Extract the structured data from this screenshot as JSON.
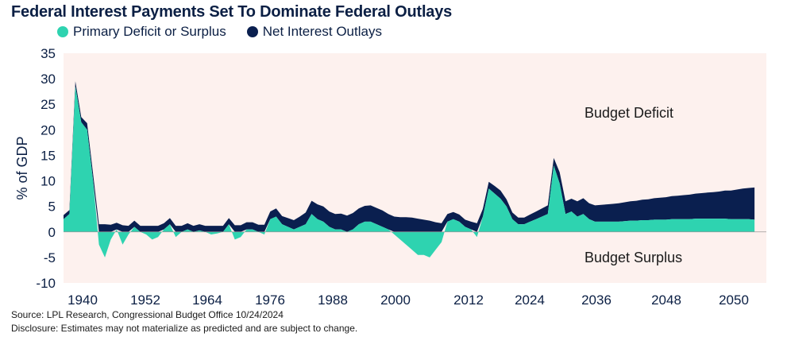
{
  "title": "Federal Interest Payments Set To Dominate Federal Outlays",
  "legend": [
    {
      "label": "Primary Deficit or Surplus",
      "color": "#2ed3b0"
    },
    {
      "label": "Net Interest Outlays",
      "color": "#0a1f4f"
    }
  ],
  "footnotes": {
    "source": "Source: LPL Research, Congressional Budget Office 10/24/2024",
    "disclosure": "Disclosure: Estimates may not materialize as predicted and are subject to change."
  },
  "colors": {
    "plot_bg": "#fdf1ee",
    "primary": "#2ed3b0",
    "interest": "#0a1f4f",
    "text": "#0b1f44"
  },
  "chart_data": {
    "type": "area",
    "stacked": true,
    "ylabel": "% of GDP",
    "xlabel": "",
    "ylim": [
      -10,
      35
    ],
    "yticks": [
      -10,
      -5,
      0,
      5,
      10,
      15,
      20,
      25,
      30,
      35
    ],
    "xlim": [
      1937,
      2056
    ],
    "xticks": [
      1940,
      1952,
      1964,
      1976,
      1988,
      2000,
      2012,
      2024,
      2036,
      2048,
      2050
    ],
    "xtick_labels": [
      "1940",
      "1952",
      "1964",
      "1976",
      "1988",
      "2000",
      "2012",
      "2024",
      "2036",
      "2048",
      "2050"
    ],
    "annotations": [
      {
        "text": "Budget Deficit",
        "x": 2039,
        "y": 23
      },
      {
        "text": "Budget Surplus",
        "x": 2039,
        "y": -5
      }
    ],
    "x": [
      1937,
      1938,
      1939,
      1940,
      1941,
      1942,
      1943,
      1944,
      1945,
      1946,
      1947,
      1948,
      1949,
      1950,
      1951,
      1952,
      1953,
      1954,
      1955,
      1956,
      1957,
      1958,
      1959,
      1960,
      1961,
      1962,
      1963,
      1964,
      1965,
      1966,
      1967,
      1968,
      1969,
      1970,
      1971,
      1972,
      1973,
      1974,
      1975,
      1976,
      1977,
      1978,
      1979,
      1980,
      1981,
      1982,
      1983,
      1984,
      1985,
      1986,
      1987,
      1988,
      1989,
      1990,
      1991,
      1992,
      1993,
      1994,
      1995,
      1996,
      1997,
      1998,
      1999,
      2000,
      2001,
      2002,
      2003,
      2004,
      2005,
      2006,
      2007,
      2008,
      2009,
      2010,
      2011,
      2012,
      2013,
      2014,
      2015,
      2016,
      2017,
      2018,
      2019,
      2020,
      2021,
      2022,
      2023,
      2024,
      2025,
      2026,
      2027,
      2028,
      2029,
      2030,
      2031,
      2032,
      2033,
      2034,
      2035,
      2036,
      2037,
      2038,
      2039,
      2040,
      2041,
      2042,
      2043,
      2044,
      2045,
      2046,
      2047,
      2048,
      2049,
      2050,
      2051,
      2052,
      2053,
      2054
    ],
    "series": [
      {
        "name": "Primary Deficit or Surplus",
        "values": [
          2.5,
          3.5,
          28.5,
          21.5,
          20.0,
          10.0,
          -2.5,
          -5.0,
          -1.5,
          0.5,
          -2.5,
          -0.5,
          1.0,
          0.0,
          -0.5,
          -1.5,
          -1.0,
          0.5,
          1.5,
          -1.0,
          0.0,
          0.5,
          0.0,
          0.3,
          0.0,
          -0.5,
          -0.3,
          0.0,
          1.5,
          -1.5,
          -1.0,
          0.5,
          0.5,
          0.0,
          -0.5,
          2.5,
          3.0,
          1.5,
          1.0,
          0.5,
          1.0,
          1.5,
          3.5,
          2.5,
          2.0,
          1.0,
          0.5,
          0.5,
          0.0,
          0.5,
          1.5,
          2.0,
          2.0,
          1.5,
          1.0,
          0.5,
          -0.5,
          -1.5,
          -2.5,
          -3.5,
          -4.5,
          -4.5,
          -5.0,
          -3.5,
          -2.0,
          2.0,
          2.5,
          2.0,
          1.0,
          0.5,
          -1.0,
          3.0,
          8.5,
          7.5,
          6.5,
          5.0,
          2.5,
          1.5,
          1.5,
          2.0,
          2.5,
          3.0,
          3.5,
          13.0,
          9.5,
          3.5,
          4.0,
          3.0,
          3.5,
          2.5,
          2.0,
          2.0,
          2.0,
          2.0,
          2.0,
          2.1,
          2.2,
          2.2,
          2.3,
          2.3,
          2.4,
          2.4,
          2.4,
          2.5,
          2.5,
          2.5,
          2.5,
          2.6,
          2.6,
          2.6,
          2.6,
          2.6,
          2.6,
          2.5,
          2.5,
          2.5,
          2.5,
          2.4
        ]
      },
      {
        "name": "Net Interest Outlays",
        "values": [
          0.8,
          0.8,
          1.0,
          1.0,
          1.3,
          1.4,
          1.5,
          1.5,
          1.4,
          1.3,
          1.3,
          1.2,
          1.2,
          1.2,
          1.2,
          1.2,
          1.2,
          1.2,
          1.2,
          1.2,
          1.2,
          1.2,
          1.2,
          1.2,
          1.2,
          1.2,
          1.2,
          1.2,
          1.2,
          1.3,
          1.3,
          1.4,
          1.4,
          1.4,
          1.4,
          1.5,
          1.6,
          1.6,
          1.7,
          1.8,
          2.0,
          2.3,
          2.6,
          2.9,
          3.0,
          3.0,
          3.0,
          3.1,
          3.2,
          3.2,
          3.1,
          3.1,
          3.2,
          3.2,
          3.2,
          3.0,
          3.0,
          2.9,
          2.9,
          2.8,
          2.6,
          2.4,
          2.2,
          1.9,
          1.7,
          1.5,
          1.4,
          1.4,
          1.4,
          1.5,
          1.7,
          1.5,
          1.3,
          1.5,
          1.6,
          1.4,
          1.3,
          1.3,
          1.3,
          1.4,
          1.5,
          1.6,
          1.7,
          1.5,
          2.2,
          2.5,
          2.5,
          3.0,
          3.1,
          3.1,
          3.2,
          3.3,
          3.4,
          3.5,
          3.6,
          3.7,
          3.8,
          3.9,
          4.0,
          4.1,
          4.2,
          4.3,
          4.4,
          4.5,
          4.6,
          4.7,
          4.8,
          4.9,
          5.0,
          5.1,
          5.2,
          5.3,
          5.5,
          5.6,
          5.8,
          6.0,
          6.1,
          6.3
        ]
      }
    ]
  }
}
